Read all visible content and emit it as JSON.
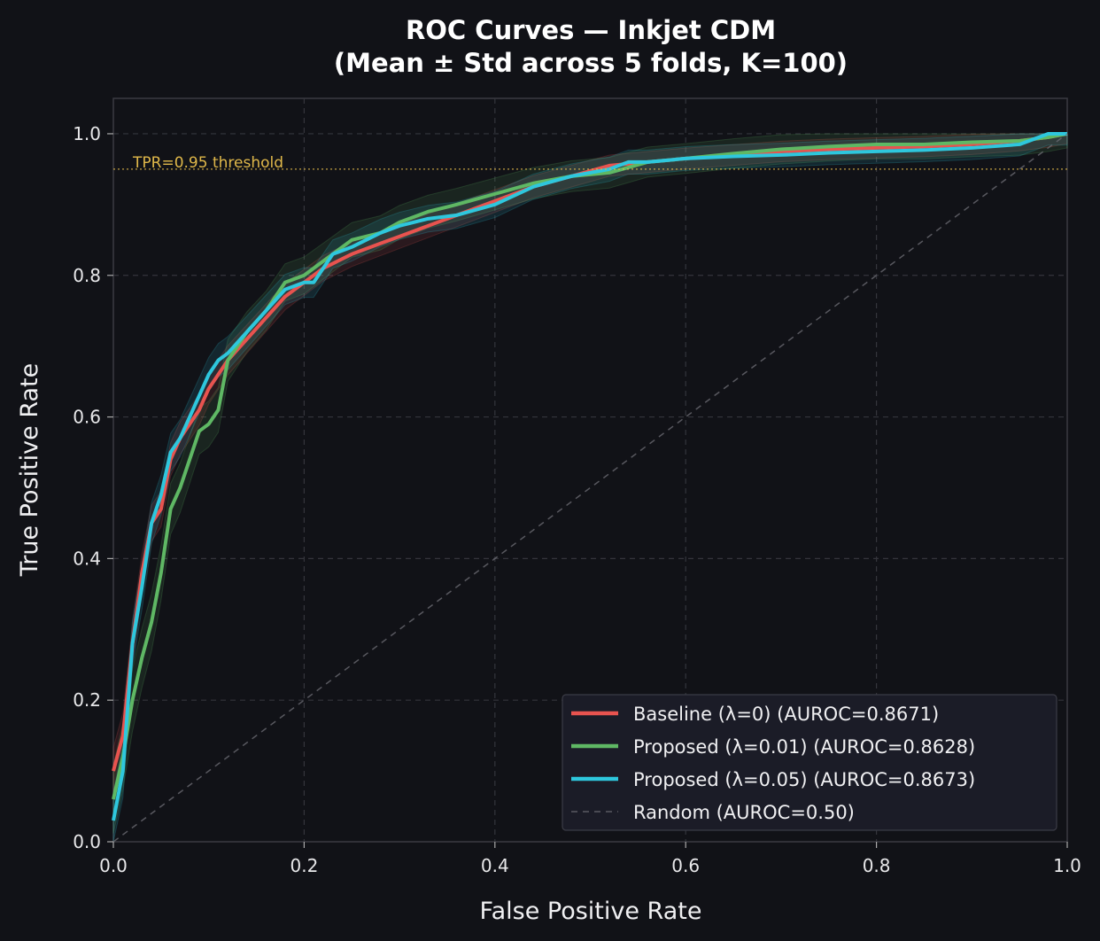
{
  "chart_data": {
    "type": "line",
    "title": "ROC Curves — Inkjet CDM",
    "subtitle": "(Mean ± Std across 5 folds, K=100)",
    "xlabel": "False Positive Rate",
    "ylabel": "True Positive Rate",
    "xlim": [
      0,
      1
    ],
    "ylim": [
      0,
      1.05
    ],
    "xticks": [
      "0.0",
      "0.2",
      "0.4",
      "0.6",
      "0.8",
      "1.0"
    ],
    "yticks": [
      "0.0",
      "0.2",
      "0.4",
      "0.6",
      "0.8",
      "1.0"
    ],
    "grid": true,
    "legend_position": "bottom-right",
    "threshold": {
      "y": 0.95,
      "label": "TPR=0.95 threshold",
      "color": "#e0b84a"
    },
    "series": [
      {
        "name": "Baseline (λ=0)  (AUROC=0.8671)",
        "color": "#e8534f",
        "x": [
          0,
          0.01,
          0.02,
          0.03,
          0.04,
          0.05,
          0.06,
          0.07,
          0.08,
          0.09,
          0.1,
          0.12,
          0.14,
          0.16,
          0.18,
          0.2,
          0.22,
          0.25,
          0.28,
          0.3,
          0.33,
          0.36,
          0.4,
          0.44,
          0.48,
          0.52,
          0.56,
          0.6,
          0.65,
          0.7,
          0.75,
          0.8,
          0.85,
          0.9,
          0.95,
          0.98,
          1.0
        ],
        "y": [
          0.1,
          0.15,
          0.28,
          0.38,
          0.45,
          0.47,
          0.54,
          0.57,
          0.59,
          0.61,
          0.64,
          0.68,
          0.71,
          0.74,
          0.77,
          0.79,
          0.81,
          0.83,
          0.845,
          0.855,
          0.87,
          0.885,
          0.905,
          0.925,
          0.94,
          0.955,
          0.96,
          0.965,
          0.97,
          0.975,
          0.978,
          0.98,
          0.982,
          0.985,
          0.99,
          0.995,
          1.0
        ],
        "std": 0.035
      },
      {
        "name": "Proposed (λ=0.01)  (AUROC=0.8628)",
        "color": "#5fb864",
        "x": [
          0,
          0.01,
          0.02,
          0.03,
          0.04,
          0.05,
          0.06,
          0.07,
          0.08,
          0.09,
          0.1,
          0.11,
          0.12,
          0.14,
          0.16,
          0.18,
          0.2,
          0.22,
          0.25,
          0.28,
          0.3,
          0.33,
          0.36,
          0.4,
          0.44,
          0.48,
          0.52,
          0.56,
          0.6,
          0.65,
          0.7,
          0.75,
          0.8,
          0.85,
          0.9,
          0.95,
          0.98,
          1.0
        ],
        "y": [
          0.06,
          0.12,
          0.2,
          0.26,
          0.31,
          0.38,
          0.47,
          0.5,
          0.54,
          0.58,
          0.59,
          0.61,
          0.68,
          0.72,
          0.75,
          0.79,
          0.8,
          0.82,
          0.85,
          0.86,
          0.875,
          0.89,
          0.9,
          0.915,
          0.93,
          0.94,
          0.945,
          0.96,
          0.965,
          0.972,
          0.978,
          0.982,
          0.985,
          0.985,
          0.988,
          0.99,
          0.995,
          1.0
        ],
        "std": 0.05
      },
      {
        "name": "Proposed (λ=0.05)  (AUROC=0.8673)",
        "color": "#2ec7dd",
        "x": [
          0,
          0.01,
          0.02,
          0.03,
          0.04,
          0.05,
          0.06,
          0.07,
          0.08,
          0.09,
          0.1,
          0.11,
          0.12,
          0.14,
          0.16,
          0.18,
          0.2,
          0.21,
          0.22,
          0.23,
          0.25,
          0.28,
          0.3,
          0.33,
          0.36,
          0.4,
          0.44,
          0.48,
          0.52,
          0.54,
          0.56,
          0.6,
          0.65,
          0.7,
          0.75,
          0.8,
          0.85,
          0.9,
          0.95,
          0.98,
          1.0
        ],
        "y": [
          0.03,
          0.1,
          0.28,
          0.36,
          0.45,
          0.49,
          0.55,
          0.57,
          0.6,
          0.63,
          0.66,
          0.68,
          0.69,
          0.72,
          0.75,
          0.78,
          0.79,
          0.79,
          0.81,
          0.83,
          0.84,
          0.86,
          0.87,
          0.88,
          0.885,
          0.9,
          0.925,
          0.94,
          0.95,
          0.96,
          0.96,
          0.965,
          0.968,
          0.97,
          0.973,
          0.975,
          0.977,
          0.98,
          0.985,
          1.0,
          1.0
        ],
        "std": 0.04
      },
      {
        "name": "Random (AUROC=0.50)",
        "color": "#6a6a72",
        "dashed": true,
        "x": [
          0,
          1
        ],
        "y": [
          0,
          1
        ]
      }
    ]
  }
}
